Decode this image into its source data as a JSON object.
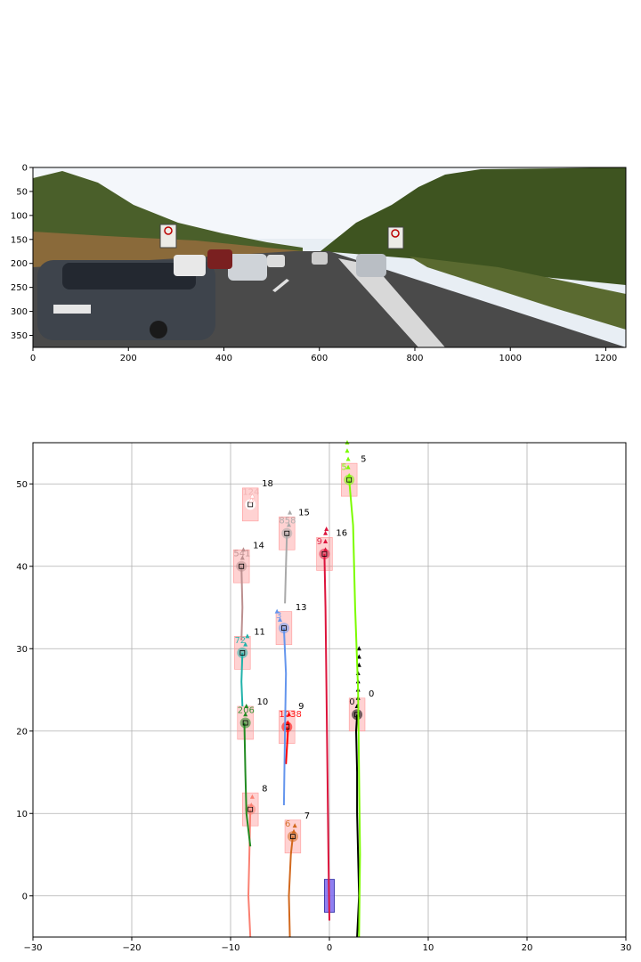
{
  "chart_data": [
    {
      "type": "image",
      "xlim": [
        0,
        1242
      ],
      "ylim": [
        375,
        0
      ],
      "xticks": [
        "0",
        "200",
        "400",
        "600",
        "800",
        "1000",
        "1200"
      ],
      "yticks": [
        "0",
        "50",
        "100",
        "150",
        "200",
        "250",
        "300",
        "350"
      ],
      "image_description_icon": "dashcam-highway-scene"
    },
    {
      "type": "scatter",
      "xlim": [
        -30,
        30
      ],
      "ylim": [
        -5,
        55
      ],
      "grid": true,
      "xticks": [
        "−30",
        "−20",
        "−10",
        "0",
        "10",
        "20",
        "30"
      ],
      "yticks": [
        "0",
        "10",
        "20",
        "30",
        "40",
        "50"
      ],
      "ego_vehicle": {
        "x": 0,
        "y": 0,
        "color": "#7b68ee"
      },
      "tracks": [
        {
          "id": "0",
          "label": "0",
          "inner": "0",
          "color": "#000000",
          "box_x": 2.8,
          "box_y": 22,
          "traj": [
            [
              2.8,
              -5
            ],
            [
              3.0,
              0
            ],
            [
              2.9,
              5
            ],
            [
              2.8,
              10
            ],
            [
              2.8,
              15
            ],
            [
              2.7,
              20
            ],
            [
              2.8,
              22
            ]
          ],
          "pred": [
            [
              2.8,
              23
            ],
            [
              2.9,
              24
            ],
            [
              2.9,
              25
            ],
            [
              2.9,
              26
            ],
            [
              2.9,
              27
            ],
            [
              3.0,
              28
            ],
            [
              3.0,
              29
            ],
            [
              3.0,
              30
            ]
          ]
        },
        {
          "id": "5",
          "label": "5",
          "inner": "5",
          "color": "#7cfc00",
          "box_x": 2.0,
          "box_y": 50.5,
          "traj": [
            [
              3.0,
              -5
            ],
            [
              3.1,
              5
            ],
            [
              3.0,
              15
            ],
            [
              2.9,
              25
            ],
            [
              2.6,
              35
            ],
            [
              2.4,
              45
            ],
            [
              2.0,
              50.5
            ]
          ],
          "pred": [
            [
              2.0,
              51
            ],
            [
              1.9,
              52
            ],
            [
              1.9,
              53
            ],
            [
              1.8,
              54
            ],
            [
              1.8,
              55
            ]
          ]
        },
        {
          "id": "16",
          "label": "16",
          "inner": "9",
          "color": "#dc143c",
          "box_x": -0.5,
          "box_y": 41.5,
          "traj": [
            [
              0,
              -3
            ],
            [
              -0.1,
              5
            ],
            [
              -0.2,
              15
            ],
            [
              -0.3,
              25
            ],
            [
              -0.4,
              35
            ],
            [
              -0.5,
              41.5
            ]
          ],
          "pred": [
            [
              -0.4,
              42
            ],
            [
              -0.4,
              43
            ],
            [
              -0.4,
              44
            ],
            [
              -0.3,
              44.5
            ]
          ]
        },
        {
          "id": "9",
          "label": "9",
          "inner": "1038",
          "color": "#ff0000",
          "box_x": -4.3,
          "box_y": 20.5,
          "traj": [
            [
              -4.4,
              16
            ],
            [
              -4.3,
              18
            ],
            [
              -4.2,
              20
            ],
            [
              -4.3,
              20.5
            ]
          ],
          "pred": [
            [
              -4.2,
              21
            ],
            [
              -4.1,
              22
            ]
          ]
        },
        {
          "id": "7",
          "label": "7",
          "inner": "6",
          "color": "#d2691e",
          "box_x": -3.7,
          "box_y": 7.2,
          "traj": [
            [
              -4.0,
              -5
            ],
            [
              -4.1,
              0
            ],
            [
              -3.9,
              5
            ],
            [
              -3.7,
              7.2
            ]
          ],
          "pred": [
            [
              -3.6,
              7.8
            ],
            [
              -3.5,
              8.5
            ]
          ]
        },
        {
          "id": "8",
          "label": "8",
          "inner": "",
          "color": "#fa8072",
          "box_x": -8.0,
          "box_y": 10.5,
          "traj": [
            [
              -8.0,
              -5
            ],
            [
              -8.2,
              0
            ],
            [
              -8.1,
              5
            ],
            [
              -8.0,
              10.5
            ]
          ],
          "pred": [
            [
              -7.9,
              11
            ],
            [
              -7.8,
              12
            ]
          ]
        },
        {
          "id": "10",
          "label": "10",
          "inner": "206",
          "color": "#228b22",
          "box_x": -8.5,
          "box_y": 21,
          "traj": [
            [
              -8.0,
              6
            ],
            [
              -8.4,
              10
            ],
            [
              -8.5,
              15
            ],
            [
              -8.6,
              21
            ]
          ],
          "pred": [
            [
              -8.5,
              22
            ],
            [
              -8.4,
              23
            ]
          ]
        },
        {
          "id": "11",
          "label": "11",
          "inner": "72",
          "color": "#20b2aa",
          "box_x": -8.8,
          "box_y": 29.5,
          "traj": [
            [
              -8.8,
              23
            ],
            [
              -8.9,
              26
            ],
            [
              -8.8,
              29.5
            ]
          ],
          "pred": [
            [
              -8.5,
              30.5
            ],
            [
              -8.3,
              31.5
            ]
          ]
        },
        {
          "id": "13",
          "label": "13",
          "inner": "3",
          "color": "#6495ed",
          "box_x": -4.6,
          "box_y": 32.5,
          "traj": [
            [
              -4.6,
              11
            ],
            [
              -4.5,
              20
            ],
            [
              -4.4,
              27
            ],
            [
              -4.6,
              32.5
            ]
          ],
          "pred": [
            [
              -5.0,
              33.5
            ],
            [
              -5.3,
              34.5
            ]
          ]
        },
        {
          "id": "14",
          "label": "14",
          "inner": "541",
          "color": "#bc8f8f",
          "box_x": -8.9,
          "box_y": 40,
          "traj": [
            [
              -8.9,
              31
            ],
            [
              -8.8,
              35
            ],
            [
              -8.9,
              40
            ]
          ],
          "pred": [
            [
              -8.8,
              41
            ],
            [
              -8.7,
              42
            ]
          ]
        },
        {
          "id": "15",
          "label": "15",
          "inner": "858",
          "color": "#a9a9a9",
          "box_x": -4.3,
          "box_y": 44,
          "traj": [
            [
              -4.5,
              35.5
            ],
            [
              -4.4,
              40
            ],
            [
              -4.3,
              44
            ]
          ],
          "pred": [
            [
              -4.1,
              45
            ],
            [
              -4.0,
              46.5
            ]
          ]
        },
        {
          "id": "18",
          "label": "18",
          "inner": "124",
          "color": "#ffffff",
          "box_x": -8.0,
          "box_y": 47.5,
          "traj": [],
          "pred": [
            [
              -7.9,
              48
            ],
            [
              -7.8,
              48.5
            ]
          ]
        }
      ]
    }
  ]
}
